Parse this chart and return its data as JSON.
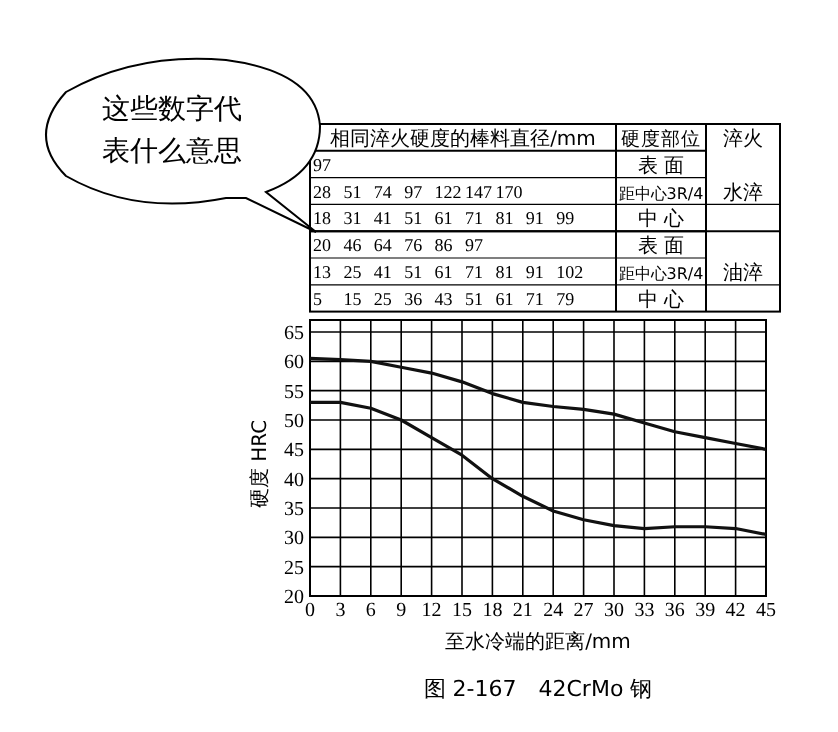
{
  "chart_data": {
    "type": "line",
    "title": "图 2-167　42CrMo 钢",
    "xlabel": "至水冷端的距离/mm",
    "ylabel": "硬度 HRC",
    "x": [
      0,
      3,
      6,
      9,
      12,
      15,
      18,
      21,
      24,
      27,
      30,
      33,
      36,
      39,
      42,
      45
    ],
    "series": [
      {
        "color": "#111111",
        "values": [
          60.5,
          60.3,
          60,
          59,
          58,
          56.5,
          54.5,
          53,
          52.3,
          51.8,
          51,
          49.5,
          48,
          47,
          46,
          45
        ]
      },
      {
        "color": "#111111",
        "values": [
          53,
          53,
          52,
          50,
          47,
          44,
          40,
          37,
          34.5,
          33,
          32,
          31.5,
          31.8,
          31.8,
          31.5,
          30.5
        ]
      }
    ],
    "xlim": [
      0,
      45
    ],
    "xticks": [
      0,
      3,
      6,
      9,
      12,
      15,
      18,
      21,
      24,
      27,
      30,
      33,
      36,
      39,
      42,
      45
    ],
    "ylim": [
      20,
      65
    ],
    "yticks": [
      20,
      25,
      30,
      35,
      40,
      45,
      50,
      55,
      60,
      65
    ],
    "grid": true,
    "marker": "none",
    "line_style": "solid",
    "annotations": [
      "这些数字代表什么意思",
      "相同淬火硬度的棒料直径/mm",
      "硬度部位",
      "淬火",
      "97",
      "28 51 74 97 122 147 170",
      "18 31 41 51 61 71 81 91 99",
      "20 46 64 76 86 97",
      "13 25 41 51 61 71 81 91 102",
      "5 15 25 36 43 51 61 71 79",
      "表 面",
      "距中心3R/4",
      "中 心",
      "表 面",
      "距中心3R/4",
      "中 心",
      "水淬",
      "油淬"
    ]
  }
}
